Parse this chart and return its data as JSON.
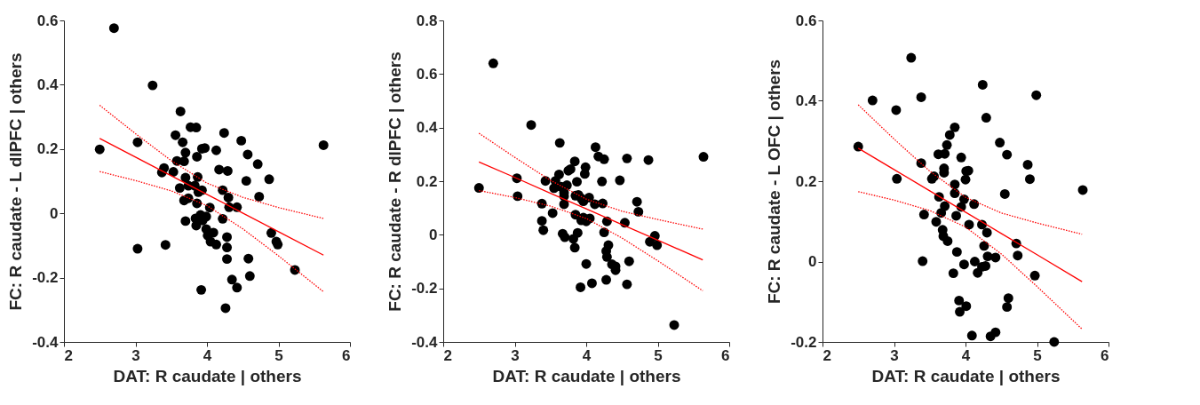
{
  "chart_data": [
    {
      "type": "scatter",
      "xlabel": "DAT: R caudate | others",
      "ylabel": "FC: R caudate - L dlPFC | others",
      "xlim": [
        2,
        6
      ],
      "xticks": [
        2,
        3,
        4,
        5,
        6
      ],
      "ylim": [
        -0.4,
        0.6
      ],
      "yticks": [
        -0.4,
        -0.2,
        0,
        0.2,
        0.4,
        0.6
      ],
      "grid": false,
      "series": [
        {
          "color": "#000000",
          "marker": "circle",
          "x": [
            2.5,
            2.7,
            3.24,
            3.03,
            3.03,
            3.42,
            3.63,
            3.77,
            3.85,
            3.56,
            3.66,
            3.7,
            3.86,
            3.97,
            3.93,
            4.13,
            4.24,
            4.48,
            4.57,
            4.71,
            4.87,
            4.55,
            4.73,
            3.58,
            3.68,
            3.4,
            3.37,
            3.53,
            4.17,
            4.29,
            3.7,
            3.87,
            3.62,
            3.74,
            3.83,
            3.93,
            3.88,
            4.22,
            4.3,
            3.68,
            3.74,
            3.86,
            4.04,
            4.31,
            4.42,
            3.7,
            3.84,
            3.85,
            3.91,
            3.99,
            3.94,
            4.22,
            3.99,
            4.01,
            4.09,
            4.05,
            4.13,
            4.28,
            4.28,
            4.28,
            4.35,
            4.42,
            4.58,
            4.6,
            3.92,
            4.26,
            4.9,
            4.97,
            4.99,
            5.23,
            5.63
          ],
          "values": [
            0.199,
            0.576,
            0.398,
            0.221,
            -0.11,
            -0.098,
            0.317,
            0.268,
            0.267,
            0.243,
            0.221,
            0.189,
            0.176,
            0.203,
            0.201,
            0.196,
            0.25,
            0.226,
            0.183,
            0.153,
            0.106,
            0.101,
            0.052,
            0.163,
            0.162,
            0.141,
            0.127,
            0.129,
            0.136,
            0.132,
            0.111,
            0.113,
            0.079,
            0.086,
            0.086,
            0.072,
            0.066,
            0.072,
            0.049,
            0.04,
            0.047,
            0.031,
            0.018,
            0.019,
            0.019,
            -0.024,
            -0.016,
            -0.038,
            -0.005,
            -0.01,
            -0.022,
            -0.017,
            -0.049,
            -0.069,
            -0.06,
            -0.088,
            -0.097,
            -0.074,
            -0.106,
            -0.142,
            -0.206,
            -0.231,
            -0.141,
            -0.195,
            -0.238,
            -0.295,
            -0.061,
            -0.088,
            -0.097,
            -0.176,
            0.212
          ]
        },
        {
          "type": "line",
          "color": "#ff0000",
          "line_style": "solid",
          "x": [
            2.5,
            3,
            3.5,
            4,
            4.5,
            5,
            5.63
          ],
          "values": [
            0.233,
            0.175,
            0.117,
            0.059,
            0.001,
            -0.057,
            -0.13
          ]
        },
        {
          "type": "line",
          "color": "#ff0000",
          "line_style": "dotted",
          "x": [
            2.5,
            3,
            3.5,
            4,
            4.5,
            5,
            5.63
          ],
          "values": [
            0.336,
            0.248,
            0.164,
            0.094,
            0.05,
            0.018,
            -0.016
          ]
        },
        {
          "type": "line",
          "color": "#ff0000",
          "line_style": "dotted",
          "x": [
            2.5,
            3,
            3.5,
            4,
            4.5,
            5,
            5.63
          ],
          "values": [
            0.13,
            0.102,
            0.07,
            0.024,
            -0.048,
            -0.132,
            -0.244
          ]
        }
      ]
    },
    {
      "type": "scatter",
      "xlabel": "DAT: R caudate | others",
      "ylabel": "FC: R caudate - R dlPFC | others",
      "xlim": [
        2,
        6
      ],
      "xticks": [
        2,
        3,
        4,
        5,
        6
      ],
      "ylim": [
        -0.4,
        0.8
      ],
      "yticks": [
        -0.4,
        -0.2,
        0,
        0.2,
        0.4,
        0.6,
        0.8
      ],
      "grid": false,
      "series": [
        {
          "color": "#000000",
          "marker": "circle",
          "x": [
            2.5,
            2.7,
            3.23,
            3.03,
            3.04,
            3.43,
            3.63,
            3.38,
            3.38,
            3.4,
            3.53,
            3.62,
            3.57,
            3.55,
            3.65,
            3.73,
            3.69,
            3.69,
            3.69,
            3.75,
            3.78,
            3.84,
            3.87,
            3.99,
            3.98,
            3.85,
            3.89,
            3.93,
            3.96,
            4.04,
            4.12,
            4.23,
            4.13,
            4.17,
            4.25,
            4.22,
            4.47,
            4.57,
            4.87,
            5.64,
            3.85,
            3.93,
            3.96,
            4.0,
            4.05,
            4.29,
            4.54,
            4.71,
            4.73,
            3.67,
            3.7,
            3.82,
            3.84,
            3.88,
            4.25,
            4.31,
            4.28,
            4.29,
            4.36,
            4.41,
            4.41,
            4.6,
            4.0,
            3.92,
            4.08,
            4.28,
            4.57,
            4.89,
            4.96,
            4.99,
            5.23
          ],
          "values": [
            0.175,
            0.64,
            0.41,
            0.211,
            0.144,
            0.201,
            0.343,
            0.116,
            0.052,
            0.017,
            0.081,
            0.225,
            0.201,
            0.174,
            0.179,
            0.185,
            0.157,
            0.144,
            0.114,
            0.239,
            0.245,
            0.274,
            0.198,
            0.252,
            0.227,
            0.146,
            0.149,
            0.136,
            0.125,
            0.139,
            0.114,
            0.117,
            0.327,
            0.292,
            0.282,
            0.199,
            0.203,
            0.285,
            0.279,
            0.291,
            0.075,
            0.054,
            0.064,
            0.05,
            0.061,
            0.05,
            0.045,
            0.123,
            0.086,
            0.004,
            -0.009,
            -0.015,
            -0.048,
            0.007,
            0.009,
            -0.039,
            -0.061,
            -0.083,
            -0.11,
            -0.118,
            -0.132,
            -0.099,
            -0.109,
            -0.196,
            -0.181,
            -0.168,
            -0.185,
            -0.026,
            -0.004,
            -0.039,
            -0.337
          ]
        },
        {
          "type": "line",
          "color": "#ff0000",
          "line_style": "solid",
          "x": [
            2.5,
            3,
            3.5,
            4,
            4.5,
            5,
            5.63
          ],
          "values": [
            0.272,
            0.214,
            0.155,
            0.097,
            0.038,
            -0.02,
            -0.094
          ]
        },
        {
          "type": "line",
          "color": "#ff0000",
          "line_style": "dotted",
          "x": [
            2.5,
            3,
            3.5,
            4,
            4.5,
            5,
            5.63
          ],
          "values": [
            0.379,
            0.289,
            0.203,
            0.133,
            0.088,
            0.057,
            0.021
          ]
        },
        {
          "type": "line",
          "color": "#ff0000",
          "line_style": "dotted",
          "x": [
            2.5,
            3,
            3.5,
            4,
            4.5,
            5,
            5.63
          ],
          "values": [
            0.165,
            0.139,
            0.107,
            0.061,
            -0.012,
            -0.097,
            -0.209
          ]
        }
      ]
    },
    {
      "type": "scatter",
      "xlabel": "DAT: R caudate | others",
      "ylabel": "FC: R caudate - L OFC | others",
      "xlim": [
        2,
        6
      ],
      "xticks": [
        2,
        3,
        4,
        5,
        6
      ],
      "ylim": [
        -0.2,
        0.6
      ],
      "yticks": [
        -0.2,
        0,
        0.2,
        0.4,
        0.6
      ],
      "grid": false,
      "series": [
        {
          "color": "#000000",
          "marker": "circle",
          "x": [
            2.5,
            2.7,
            3.03,
            3.24,
            3.38,
            3.04,
            3.38,
            3.42,
            3.4,
            3.53,
            3.56,
            3.59,
            3.63,
            3.62,
            3.71,
            3.74,
            3.78,
            3.85,
            3.7,
            3.7,
            3.94,
            4.01,
            4.04,
            4.0,
            3.85,
            3.85,
            3.98,
            3.94,
            4.12,
            3.71,
            3.66,
            3.87,
            4.05,
            4.23,
            4.3,
            3.68,
            3.69,
            3.75,
            3.88,
            4.26,
            4.31,
            4.42,
            3.98,
            4.13,
            3.83,
            4.17,
            4.23,
            4.28,
            4.24,
            4.29,
            4.48,
            4.58,
            4.55,
            4.87,
            4.9,
            4.99,
            5.64,
            4.71,
            4.73,
            4.97,
            3.91,
            3.92,
            4.01,
            4.6,
            4.58,
            4.09,
            4.35,
            4.42,
            5.24
          ],
          "values": [
            0.286,
            0.401,
            0.377,
            0.507,
            0.409,
            0.206,
            0.245,
            0.117,
            0.001,
            0.206,
            0.212,
            0.099,
            0.161,
            0.267,
            0.268,
            0.29,
            0.315,
            0.334,
            0.232,
            0.221,
            0.259,
            0.225,
            0.226,
            0.204,
            0.192,
            0.17,
            0.155,
            0.136,
            0.143,
            0.138,
            0.121,
            0.114,
            0.092,
            0.092,
            0.072,
            0.079,
            0.063,
            0.051,
            0.024,
            0.039,
            0.013,
            0.01,
            -0.007,
            0.0,
            -0.029,
            -0.028,
            -0.013,
            -0.011,
            0.44,
            0.358,
            0.296,
            0.266,
            0.168,
            0.241,
            0.205,
            0.414,
            0.178,
            0.045,
            0.015,
            -0.035,
            -0.097,
            -0.125,
            -0.111,
            -0.091,
            -0.113,
            -0.184,
            -0.186,
            -0.176,
            -0.2
          ]
        },
        {
          "type": "line",
          "color": "#ff0000",
          "line_style": "solid",
          "x": [
            2.5,
            3,
            3.5,
            4,
            4.5,
            5,
            5.63
          ],
          "values": [
            0.282,
            0.229,
            0.176,
            0.123,
            0.07,
            0.017,
            -0.05
          ]
        },
        {
          "type": "line",
          "color": "#ff0000",
          "line_style": "dotted",
          "x": [
            2.5,
            3,
            3.5,
            4,
            4.5,
            5,
            5.63
          ],
          "values": [
            0.39,
            0.305,
            0.225,
            0.16,
            0.121,
            0.096,
            0.068
          ]
        },
        {
          "type": "line",
          "color": "#ff0000",
          "line_style": "dotted",
          "x": [
            2.5,
            3,
            3.5,
            4,
            4.5,
            5,
            5.63
          ],
          "values": [
            0.174,
            0.153,
            0.127,
            0.086,
            0.019,
            -0.062,
            -0.168
          ]
        }
      ]
    }
  ]
}
